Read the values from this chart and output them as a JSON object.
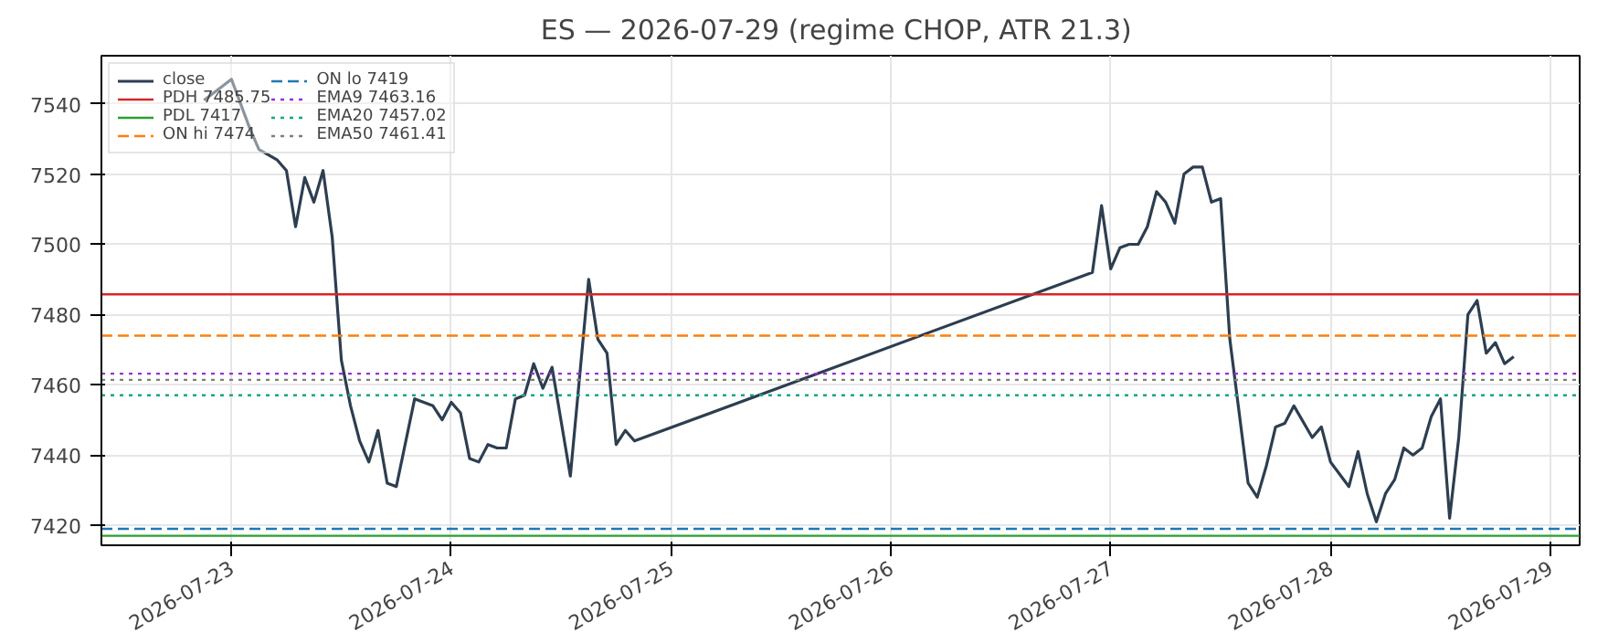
{
  "chart_data": {
    "type": "line",
    "title": "ES — 2026-07-29  (regime CHOP, ATR 21.3)",
    "x": [
      "2026-07-22T21:00",
      "2026-07-22T23:00",
      "2026-07-23T00:00",
      "2026-07-23T02:00",
      "2026-07-23T03:00",
      "2026-07-23T05:00",
      "2026-07-23T06:00",
      "2026-07-23T07:00",
      "2026-07-23T08:00",
      "2026-07-23T09:00",
      "2026-07-23T10:00",
      "2026-07-23T11:00",
      "2026-07-23T12:00",
      "2026-07-23T13:00",
      "2026-07-23T14:00",
      "2026-07-23T15:00",
      "2026-07-23T16:00",
      "2026-07-23T17:00",
      "2026-07-23T18:00",
      "2026-07-23T20:00",
      "2026-07-23T22:00",
      "2026-07-23T23:00",
      "2026-07-24T00:00",
      "2026-07-24T01:00",
      "2026-07-24T02:00",
      "2026-07-24T03:00",
      "2026-07-24T04:00",
      "2026-07-24T05:00",
      "2026-07-24T06:00",
      "2026-07-24T07:00",
      "2026-07-24T08:00",
      "2026-07-24T09:00",
      "2026-07-24T10:00",
      "2026-07-24T11:00",
      "2026-07-24T13:00",
      "2026-07-24T15:00",
      "2026-07-24T16:00",
      "2026-07-24T17:00",
      "2026-07-24T18:00",
      "2026-07-24T19:00",
      "2026-07-24T20:00",
      "2026-07-26T22:00",
      "2026-07-26T23:00",
      "2026-07-27T00:00",
      "2026-07-27T01:00",
      "2026-07-27T02:00",
      "2026-07-27T03:00",
      "2026-07-27T04:00",
      "2026-07-27T05:00",
      "2026-07-27T06:00",
      "2026-07-27T07:00",
      "2026-07-27T08:00",
      "2026-07-27T09:00",
      "2026-07-27T10:00",
      "2026-07-27T11:00",
      "2026-07-27T12:00",
      "2026-07-27T13:00",
      "2026-07-27T15:00",
      "2026-07-27T16:00",
      "2026-07-27T17:00",
      "2026-07-27T18:00",
      "2026-07-27T19:00",
      "2026-07-27T20:00",
      "2026-07-27T22:00",
      "2026-07-27T23:00",
      "2026-07-28T00:00",
      "2026-07-28T02:00",
      "2026-07-28T03:00",
      "2026-07-28T04:00",
      "2026-07-28T05:00",
      "2026-07-28T06:00",
      "2026-07-28T07:00",
      "2026-07-28T08:00",
      "2026-07-28T09:00",
      "2026-07-28T10:00",
      "2026-07-28T11:00",
      "2026-07-28T12:00",
      "2026-07-28T13:00",
      "2026-07-28T14:00",
      "2026-07-28T15:00",
      "2026-07-28T16:00",
      "2026-07-28T17:00",
      "2026-07-28T18:00",
      "2026-07-28T19:00",
      "2026-07-28T20:00"
    ],
    "series": [
      {
        "name": "close",
        "color": "#2c3e50",
        "values": [
          7541,
          7545,
          7547,
          7533,
          7527,
          7524,
          7521,
          7505,
          7519,
          7512,
          7521,
          7502,
          7467,
          7454,
          7444,
          7438,
          7447,
          7432,
          7431,
          7456,
          7454,
          7450,
          7455,
          7452,
          7439,
          7438,
          7443,
          7442,
          7442,
          7456,
          7457,
          7466,
          7459,
          7465,
          7434,
          7490,
          7473,
          7469,
          7443,
          7447,
          7444,
          7492,
          7511,
          7493,
          7499,
          7500,
          7500,
          7505,
          7515,
          7512,
          7506,
          7520,
          7522,
          7522,
          7512,
          7513,
          7473,
          7432,
          7428,
          7437,
          7448,
          7449,
          7454,
          7445,
          7448,
          7438,
          7431,
          7441,
          7429,
          7421,
          7429,
          7433,
          7442,
          7440,
          7442,
          7451,
          7456,
          7422,
          7445,
          7480,
          7484,
          7469,
          7472,
          7466,
          7468
        ]
      }
    ],
    "ref_lines": [
      {
        "axis": "y",
        "value": 7485.75,
        "label": "PDH 7485.75",
        "color": "#d62728",
        "line_style": "solid"
      },
      {
        "axis": "y",
        "value": 7417,
        "label": "PDL 7417",
        "color": "#2ca02c",
        "line_style": "solid"
      },
      {
        "axis": "y",
        "value": 7474,
        "label": "ON hi 7474",
        "color": "#ff7f0e",
        "line_style": "dashed"
      },
      {
        "axis": "y",
        "value": 7419,
        "label": "ON lo 7419",
        "color": "#1f77b4",
        "line_style": "dashed"
      },
      {
        "axis": "y",
        "value": 7463.16,
        "label": "EMA9 7463.16",
        "color": "#9b30d9",
        "line_style": "dotted"
      },
      {
        "axis": "y",
        "value": 7457.02,
        "label": "EMA20 7457.02",
        "color": "#17a589",
        "line_style": "dotted"
      },
      {
        "axis": "y",
        "value": 7461.41,
        "label": "EMA50 7461.41",
        "color": "#7f7f7f",
        "line_style": "dotted"
      }
    ],
    "xlim": [
      "2026-07-22T09:48",
      "2026-07-29T03:12"
    ],
    "xticks": [
      "2026-07-23",
      "2026-07-24",
      "2026-07-25",
      "2026-07-26",
      "2026-07-27",
      "2026-07-28",
      "2026-07-29"
    ],
    "ylim": [
      7414.3,
      7553.7
    ],
    "yticks": [
      7420,
      7440,
      7460,
      7480,
      7500,
      7520,
      7540
    ],
    "grid": true,
    "legend": "top left",
    "line_style": "solid",
    "marker": "none"
  }
}
